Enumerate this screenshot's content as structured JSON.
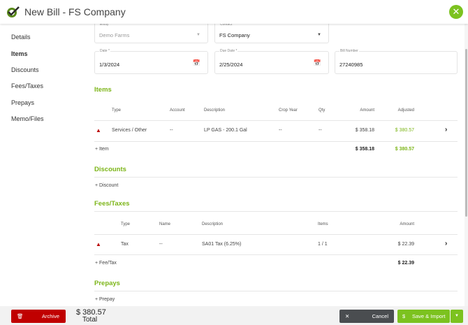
{
  "header": {
    "title": "New Bill - FS Company",
    "logo_icon": "farm-logo-icon",
    "close_icon": "close-icon"
  },
  "sidebar": {
    "items": [
      {
        "label": "Details"
      },
      {
        "label": "Items",
        "active": true
      },
      {
        "label": "Discounts"
      },
      {
        "label": "Fees/Taxes"
      },
      {
        "label": "Prepays"
      },
      {
        "label": "Memo/Files"
      }
    ]
  },
  "form": {
    "entity": {
      "label": "Entity",
      "value": "Demo Farms"
    },
    "contact": {
      "label": "Contact",
      "value": "FS Company"
    },
    "date": {
      "label": "Date *",
      "value": "1/3/2024"
    },
    "due_date": {
      "label": "Due Date *",
      "value": "2/25/2024"
    },
    "bill_number": {
      "label": "Bill Number",
      "value": "27240985"
    }
  },
  "items": {
    "heading": "Items",
    "columns": [
      "Type",
      "Account",
      "Description",
      "Crop Year",
      "Qty",
      "Amount",
      "Adjusted"
    ],
    "rows": [
      {
        "type": "Services / Other",
        "account": "--",
        "description": "LP GAS - 200.1 Gal",
        "crop_year": "--",
        "qty": "--",
        "amount": "$ 358.18",
        "adjusted": "$ 380.57"
      }
    ],
    "add_label": "+ Item",
    "total_amount": "$ 358.18",
    "total_adjusted": "$ 380.57"
  },
  "discounts": {
    "heading": "Discounts",
    "add_label": "+ Discount"
  },
  "fees": {
    "heading": "Fees/Taxes",
    "columns": [
      "Type",
      "Name",
      "Description",
      "Items",
      "Amount"
    ],
    "rows": [
      {
        "type": "Tax",
        "name": "--",
        "description": "SA01 Tax (6.25%)",
        "items": "1 / 1",
        "amount": "$ 22.39"
      }
    ],
    "add_label": "+ Fee/Tax",
    "total": "$ 22.39"
  },
  "prepays": {
    "heading": "Prepays",
    "add_label": "+ Prepay"
  },
  "footer": {
    "archive_label": "Archive",
    "total_value": "$ 380.57",
    "total_label": "Total",
    "cancel_label": "Cancel",
    "save_label": "Save & Import"
  },
  "colors": {
    "accent": "#7cb518",
    "archive": "#c00000",
    "cancel": "#4a4d50"
  }
}
